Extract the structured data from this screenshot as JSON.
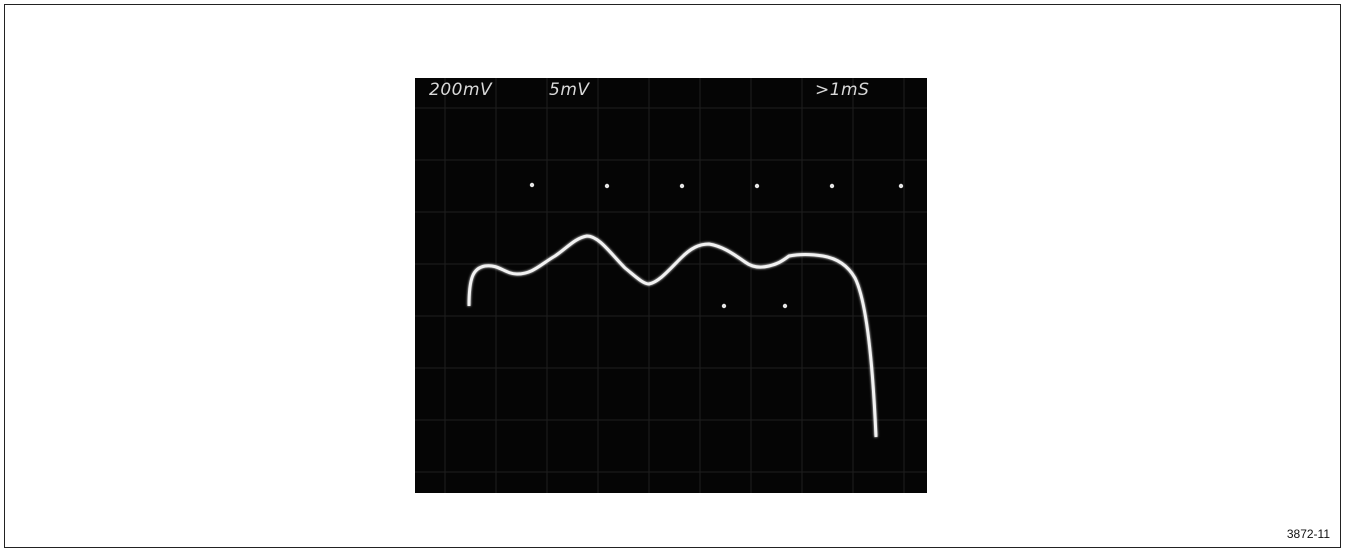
{
  "figure": {
    "id_label": "3872-11"
  },
  "scope": {
    "readouts": {
      "channel1_scale": "200mV",
      "channel2_scale": "5mV",
      "timebase": ">1mS"
    },
    "colors": {
      "screen": "#050505",
      "trace": "#f2f2f2",
      "graticule": "#2a2a2a",
      "readout": "#d9d9d9"
    }
  }
}
